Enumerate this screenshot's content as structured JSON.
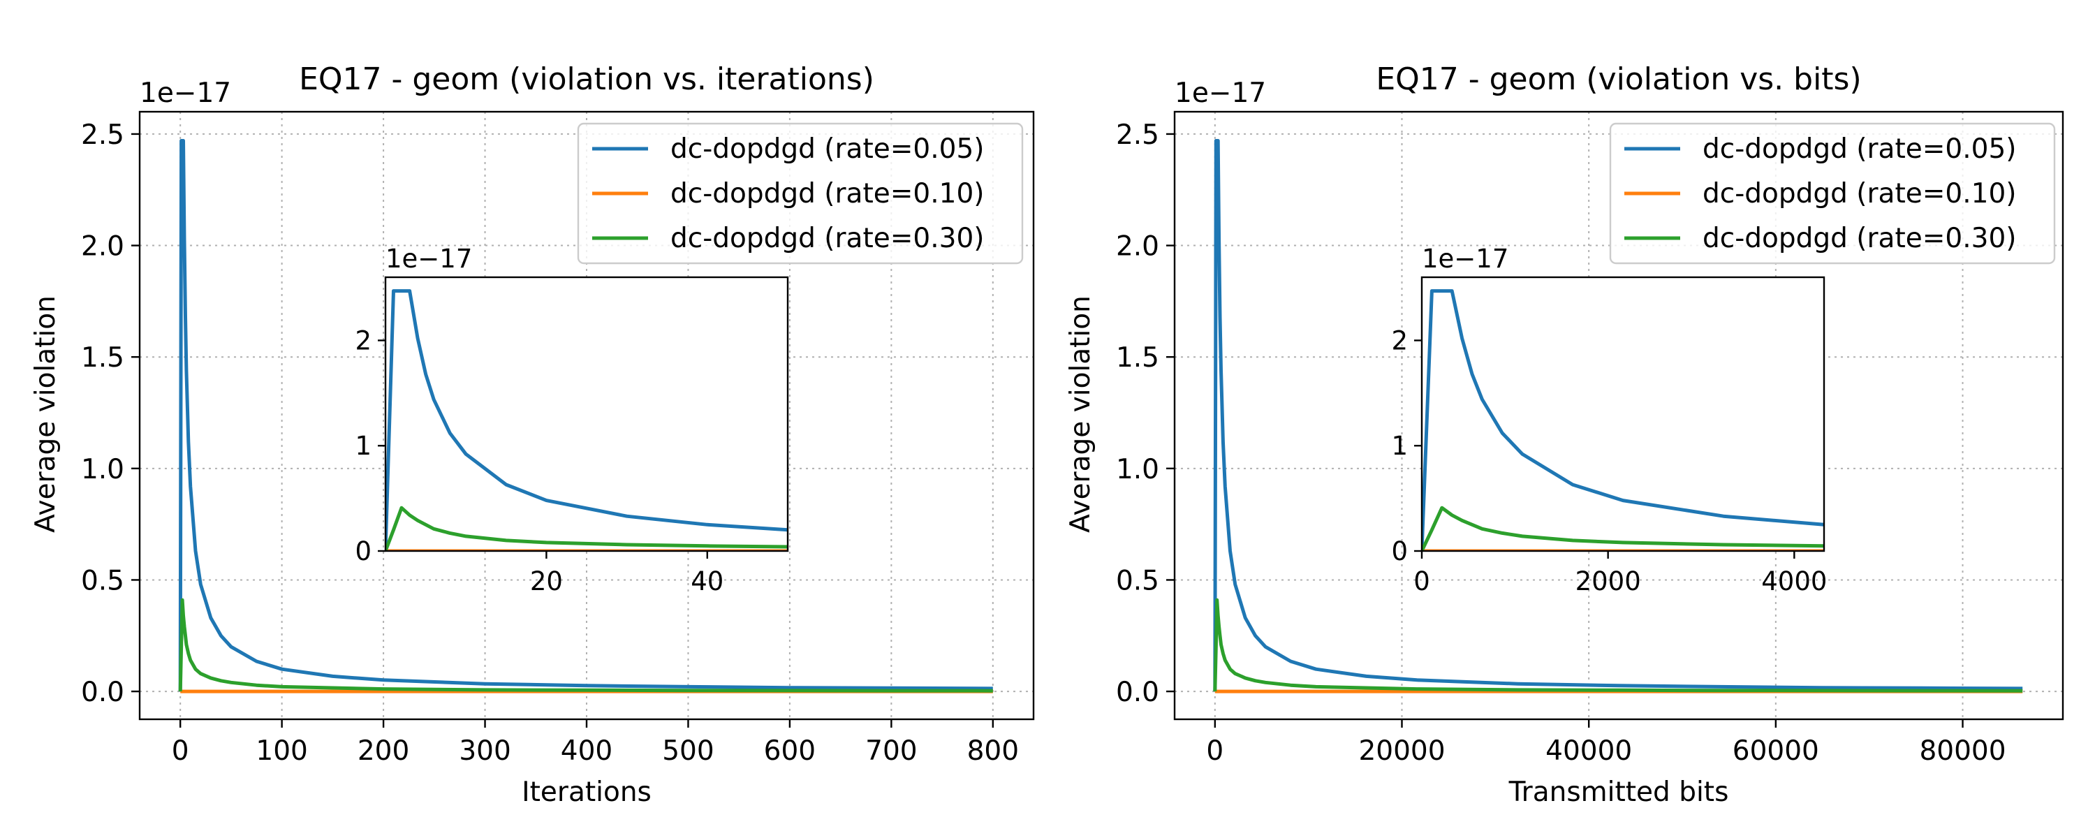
{
  "chart_data": [
    {
      "type": "line",
      "title": "EQ17 - geom (violation vs. iterations)",
      "xlabel": "Iterations",
      "ylabel": "Average violation",
      "y_offset_text": "1e−17",
      "xlim": [
        -40,
        840
      ],
      "ylim": [
        -0.125,
        2.6
      ],
      "xticks": [
        0,
        100,
        200,
        300,
        400,
        500,
        600,
        700,
        800
      ],
      "xtick_labels": [
        "0",
        "100",
        "200",
        "300",
        "400",
        "500",
        "600",
        "700",
        "800"
      ],
      "yticks": [
        0.0,
        0.5,
        1.0,
        1.5,
        2.0,
        2.5
      ],
      "ytick_labels": [
        "0.0",
        "0.5",
        "1.0",
        "1.5",
        "2.0",
        "2.5"
      ],
      "grid": true,
      "legend_position": "upper right",
      "series": [
        {
          "name": "dc-dopdgd (rate=0.05)",
          "color": "#1f77b4",
          "x": [
            0,
            1,
            2,
            3,
            4,
            5,
            6,
            8,
            10,
            15,
            20,
            30,
            40,
            50,
            75,
            100,
            150,
            200,
            300,
            400,
            500,
            600,
            700,
            800
          ],
          "y": [
            0,
            2.47,
            2.47,
            2.47,
            2.02,
            1.68,
            1.44,
            1.12,
            0.92,
            0.63,
            0.48,
            0.33,
            0.25,
            0.2,
            0.135,
            0.1,
            0.068,
            0.051,
            0.034,
            0.026,
            0.021,
            0.017,
            0.015,
            0.013
          ]
        },
        {
          "name": "dc-dopdgd (rate=0.10)",
          "color": "#ff7f0e",
          "x": [
            0,
            800
          ],
          "y": [
            0,
            0
          ]
        },
        {
          "name": "dc-dopdgd (rate=0.30)",
          "color": "#2ca02c",
          "x": [
            0,
            1,
            2,
            3,
            4,
            5,
            6,
            8,
            10,
            15,
            20,
            30,
            40,
            50,
            75,
            100,
            200,
            300,
            400,
            500,
            600,
            700,
            800
          ],
          "y": [
            0,
            0.2,
            0.41,
            0.34,
            0.29,
            0.25,
            0.21,
            0.17,
            0.14,
            0.1,
            0.08,
            0.06,
            0.048,
            0.04,
            0.028,
            0.021,
            0.011,
            0.007,
            0.0055,
            0.0045,
            0.0037,
            0.0032,
            0.0028
          ]
        }
      ],
      "inset": {
        "xlim": [
          0,
          50
        ],
        "ylim": [
          0,
          2.6
        ],
        "xticks": [
          20,
          40
        ],
        "xtick_labels": [
          "20",
          "40"
        ],
        "yticks": [
          0,
          1,
          2
        ],
        "ytick_labels": [
          "0",
          "1",
          "2"
        ],
        "y_offset_text": "1e−17"
      }
    },
    {
      "type": "line",
      "title": "EQ17 - geom (violation vs. bits)",
      "xlabel": "Transmitted bits",
      "ylabel": "Average violation",
      "y_offset_text": "1e−17",
      "xlim": [
        -4320,
        90720
      ],
      "ylim": [
        -0.125,
        2.6
      ],
      "xticks": [
        0,
        20000,
        40000,
        60000,
        80000
      ],
      "xtick_labels": [
        "0",
        "20000",
        "40000",
        "60000",
        "80000"
      ],
      "yticks": [
        0.0,
        0.5,
        1.0,
        1.5,
        2.0,
        2.5
      ],
      "ytick_labels": [
        "0.0",
        "0.5",
        "1.0",
        "1.5",
        "2.0",
        "2.5"
      ],
      "grid": true,
      "legend_position": "upper right",
      "series": [
        {
          "name": "dc-dopdgd (rate=0.05)",
          "color": "#1f77b4",
          "x": [
            0,
            108,
            216,
            324,
            432,
            540,
            648,
            864,
            1080,
            1620,
            2160,
            3240,
            4320,
            5400,
            8100,
            10800,
            16200,
            21600,
            32400,
            43200,
            54000,
            64800,
            75600,
            86400
          ],
          "y": [
            0,
            2.47,
            2.47,
            2.47,
            2.02,
            1.68,
            1.44,
            1.12,
            0.92,
            0.63,
            0.48,
            0.33,
            0.25,
            0.2,
            0.135,
            0.1,
            0.068,
            0.051,
            0.034,
            0.026,
            0.021,
            0.017,
            0.015,
            0.013
          ]
        },
        {
          "name": "dc-dopdgd (rate=0.10)",
          "color": "#ff7f0e",
          "x": [
            0,
            86400
          ],
          "y": [
            0,
            0
          ]
        },
        {
          "name": "dc-dopdgd (rate=0.30)",
          "color": "#2ca02c",
          "x": [
            0,
            108,
            216,
            324,
            432,
            540,
            648,
            864,
            1080,
            1620,
            2160,
            3240,
            4320,
            5400,
            8100,
            10800,
            21600,
            32400,
            43200,
            54000,
            64800,
            75600,
            86400
          ],
          "y": [
            0,
            0.2,
            0.41,
            0.34,
            0.29,
            0.25,
            0.21,
            0.17,
            0.14,
            0.1,
            0.08,
            0.06,
            0.048,
            0.04,
            0.028,
            0.021,
            0.011,
            0.007,
            0.0055,
            0.0045,
            0.0037,
            0.0032,
            0.0028
          ]
        }
      ],
      "inset": {
        "xlim": [
          0,
          4320
        ],
        "ylim": [
          0,
          2.6
        ],
        "xticks": [
          0,
          2000,
          4000
        ],
        "xtick_labels": [
          "0",
          "2000",
          "4000"
        ],
        "yticks": [
          0,
          1,
          2
        ],
        "ytick_labels": [
          "0",
          "1",
          "2"
        ],
        "y_offset_text": "1e−17"
      }
    }
  ]
}
